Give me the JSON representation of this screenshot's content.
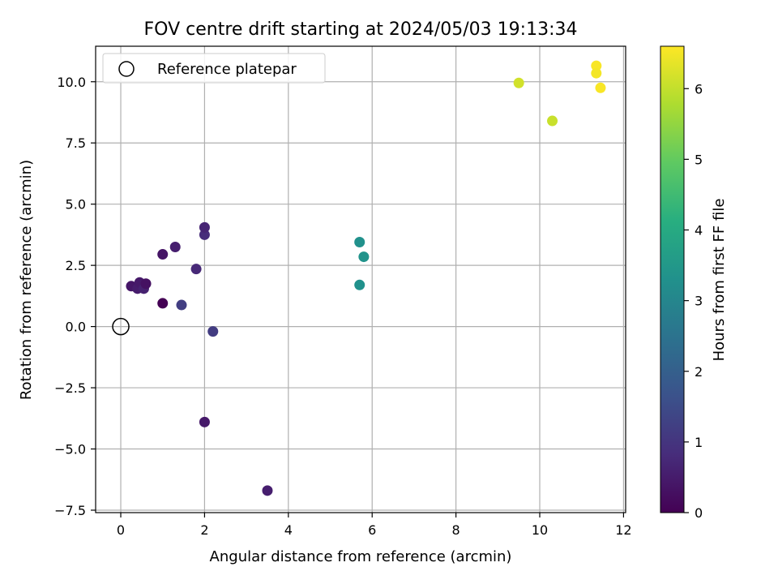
{
  "chart_data": {
    "type": "scatter",
    "title": "FOV centre drift starting at 2024/05/03 19:13:34",
    "xlabel": "Angular distance from reference (arcmin)",
    "ylabel": "Rotation from reference (arcmin)",
    "xlim": [
      -0.6,
      12.05
    ],
    "ylim": [
      -7.6,
      11.45
    ],
    "x_ticks": [
      0,
      2,
      4,
      6,
      8,
      10,
      12
    ],
    "y_ticks": [
      -7.5,
      -5.0,
      -2.5,
      0.0,
      2.5,
      5.0,
      7.5,
      10.0
    ],
    "x_tick_labels": [
      "0",
      "2",
      "4",
      "6",
      "8",
      "10",
      "12"
    ],
    "y_tick_labels": [
      "−7.5",
      "−5.0",
      "−2.5",
      "0.0",
      "2.5",
      "5.0",
      "7.5",
      "10.0"
    ],
    "grid": true,
    "legend": {
      "placement": "top-left",
      "entries": [
        "Reference platepar"
      ]
    },
    "reference_point": {
      "x": 0,
      "y": 0
    },
    "colorbar": {
      "label": "Hours from first FF file",
      "colormap": "viridis",
      "range": [
        0,
        6.6
      ],
      "ticks": [
        0,
        1,
        2,
        3,
        4,
        5,
        6
      ],
      "tick_labels": [
        "0",
        "1",
        "2",
        "3",
        "4",
        "5",
        "6"
      ]
    },
    "points": [
      {
        "x": 1.0,
        "y": 0.95,
        "hours": 0.0
      },
      {
        "x": 0.25,
        "y": 1.65,
        "hours": 0.4
      },
      {
        "x": 0.4,
        "y": 1.55,
        "hours": 0.5
      },
      {
        "x": 0.45,
        "y": 1.8,
        "hours": 0.45
      },
      {
        "x": 0.55,
        "y": 1.55,
        "hours": 0.6
      },
      {
        "x": 0.6,
        "y": 1.75,
        "hours": 0.3
      },
      {
        "x": 1.0,
        "y": 2.95,
        "hours": 0.35
      },
      {
        "x": 1.3,
        "y": 3.25,
        "hours": 0.55
      },
      {
        "x": 1.8,
        "y": 2.35,
        "hours": 0.75
      },
      {
        "x": 1.45,
        "y": 0.88,
        "hours": 1.2
      },
      {
        "x": 2.0,
        "y": 3.75,
        "hours": 0.8
      },
      {
        "x": 2.0,
        "y": 4.05,
        "hours": 0.65
      },
      {
        "x": 2.2,
        "y": -0.2,
        "hours": 1.15
      },
      {
        "x": 2.0,
        "y": -3.9,
        "hours": 0.45
      },
      {
        "x": 3.5,
        "y": -6.7,
        "hours": 0.55
      },
      {
        "x": 5.7,
        "y": 3.45,
        "hours": 3.3
      },
      {
        "x": 5.8,
        "y": 2.85,
        "hours": 3.35
      },
      {
        "x": 5.7,
        "y": 1.7,
        "hours": 3.3
      },
      {
        "x": 9.5,
        "y": 9.95,
        "hours": 6.15
      },
      {
        "x": 10.3,
        "y": 8.4,
        "hours": 6.05
      },
      {
        "x": 11.35,
        "y": 10.65,
        "hours": 6.55
      },
      {
        "x": 11.35,
        "y": 10.35,
        "hours": 6.5
      },
      {
        "x": 11.45,
        "y": 9.75,
        "hours": 6.55
      }
    ]
  }
}
